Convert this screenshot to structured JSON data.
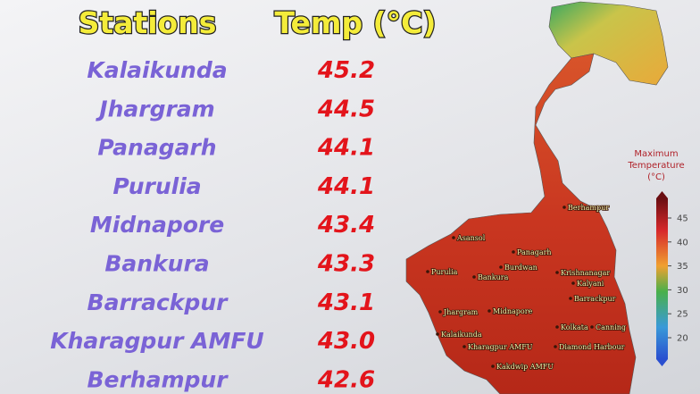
{
  "table": {
    "header": [
      "Stations",
      "Temp (°C)"
    ],
    "rows": [
      [
        "Kalaikunda",
        "45.2"
      ],
      [
        "Jhargram",
        "44.5"
      ],
      [
        "Panagarh",
        "44.1"
      ],
      [
        "Purulia",
        "44.1"
      ],
      [
        "Midnapore",
        "43.4"
      ],
      [
        "Bankura",
        "43.3"
      ],
      [
        "Barrackpur",
        "43.1"
      ],
      [
        "Kharagpur AMFU",
        "43.0"
      ],
      [
        "Berhampur",
        "42.6"
      ]
    ]
  },
  "map": {
    "labels": [
      "Berhampur",
      "Asansol",
      "Panagarh",
      "Purulia",
      "Burdwan",
      "Krishnanagar",
      "Bankura",
      "Kalyani",
      "Barrackpur",
      "Jhargram",
      "Midnapore",
      "Kolkata",
      "Canning",
      "Kalaikunda",
      "Kharagpur AMFU",
      "Diamond Harbour",
      "Kakdwip AMFU"
    ],
    "legend": {
      "title": [
        "Maximum",
        "Temperature",
        "(°C)"
      ],
      "ticks": [
        45,
        40,
        35,
        30,
        25,
        20
      ]
    }
  }
}
